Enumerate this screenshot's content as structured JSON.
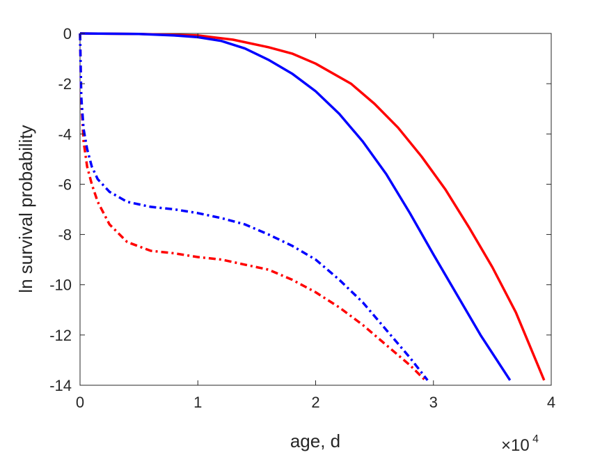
{
  "chart_data": {
    "type": "line",
    "title": "",
    "xlabel": "age, d",
    "ylabel": "ln survival probability",
    "x_multiplier": {
      "base": "×10",
      "exponent": "4"
    },
    "xlim": [
      0,
      40000
    ],
    "ylim": [
      -14,
      0
    ],
    "xticks": [
      0,
      10000,
      20000,
      30000,
      40000
    ],
    "xtick_labels": [
      "0",
      "1",
      "2",
      "3",
      "4"
    ],
    "yticks": [
      0,
      -2,
      -4,
      -6,
      -8,
      -10,
      -12,
      -14
    ],
    "ytick_labels": [
      "0",
      "-2",
      "-4",
      "-6",
      "-8",
      "-10",
      "-12",
      "-14"
    ],
    "grid": false,
    "legend": "none",
    "series": [
      {
        "color": "#ff0000",
        "style": "solid",
        "points": [
          [
            0,
            0
          ],
          [
            5000,
            -0.02
          ],
          [
            10000,
            -0.08
          ],
          [
            13000,
            -0.25
          ],
          [
            16000,
            -0.55
          ],
          [
            18000,
            -0.8
          ],
          [
            20000,
            -1.2
          ],
          [
            23000,
            -2.0
          ],
          [
            25000,
            -2.8
          ],
          [
            27000,
            -3.75
          ],
          [
            29000,
            -4.9
          ],
          [
            31000,
            -6.2
          ],
          [
            33000,
            -7.7
          ],
          [
            35000,
            -9.3
          ],
          [
            37000,
            -11.1
          ],
          [
            39400,
            -13.8
          ]
        ]
      },
      {
        "color": "#0000ff",
        "style": "solid",
        "points": [
          [
            0,
            0
          ],
          [
            5000,
            -0.02
          ],
          [
            8000,
            -0.08
          ],
          [
            10000,
            -0.15
          ],
          [
            12000,
            -0.3
          ],
          [
            14000,
            -0.6
          ],
          [
            16000,
            -1.05
          ],
          [
            18000,
            -1.6
          ],
          [
            20000,
            -2.3
          ],
          [
            22000,
            -3.2
          ],
          [
            24000,
            -4.3
          ],
          [
            26000,
            -5.6
          ],
          [
            28000,
            -7.15
          ],
          [
            30000,
            -8.8
          ],
          [
            32000,
            -10.4
          ],
          [
            34000,
            -12.0
          ],
          [
            36500,
            -13.8
          ]
        ]
      },
      {
        "color": "#ff0000",
        "style": "dashdot",
        "points": [
          [
            0,
            0
          ],
          [
            100,
            -2.6
          ],
          [
            300,
            -4.3
          ],
          [
            600,
            -5.3
          ],
          [
            1000,
            -6.0
          ],
          [
            1500,
            -6.7
          ],
          [
            2500,
            -7.6
          ],
          [
            4000,
            -8.3
          ],
          [
            6000,
            -8.65
          ],
          [
            8000,
            -8.75
          ],
          [
            10000,
            -8.9
          ],
          [
            12000,
            -9.0
          ],
          [
            14000,
            -9.2
          ],
          [
            16000,
            -9.4
          ],
          [
            18000,
            -9.8
          ],
          [
            20000,
            -10.3
          ],
          [
            22000,
            -10.9
          ],
          [
            24000,
            -11.6
          ],
          [
            26000,
            -12.4
          ],
          [
            28000,
            -13.2
          ],
          [
            29300,
            -13.8
          ]
        ]
      },
      {
        "color": "#0000ff",
        "style": "dashdot",
        "points": [
          [
            0,
            0
          ],
          [
            100,
            -2.5
          ],
          [
            300,
            -3.8
          ],
          [
            600,
            -4.6
          ],
          [
            1000,
            -5.3
          ],
          [
            1500,
            -5.8
          ],
          [
            2500,
            -6.3
          ],
          [
            4000,
            -6.7
          ],
          [
            6000,
            -6.9
          ],
          [
            8000,
            -7.0
          ],
          [
            10000,
            -7.15
          ],
          [
            12000,
            -7.35
          ],
          [
            14000,
            -7.6
          ],
          [
            16000,
            -8.0
          ],
          [
            18000,
            -8.45
          ],
          [
            20000,
            -9.0
          ],
          [
            22000,
            -9.8
          ],
          [
            24000,
            -10.7
          ],
          [
            26000,
            -11.8
          ],
          [
            28000,
            -12.9
          ],
          [
            29500,
            -13.8
          ]
        ]
      }
    ]
  }
}
